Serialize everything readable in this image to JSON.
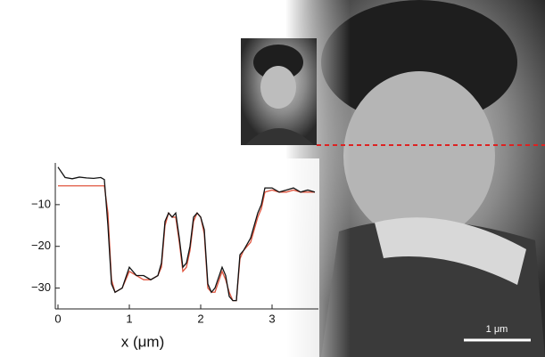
{
  "chart_data": {
    "type": "line",
    "xlabel": "x (μm)",
    "scale_bar_label": "1 μm",
    "x": [
      0,
      0.1,
      0.2,
      0.3,
      0.4,
      0.5,
      0.6,
      0.65,
      0.7,
      0.75,
      0.8,
      0.9,
      1.0,
      1.1,
      1.2,
      1.3,
      1.4,
      1.45,
      1.5,
      1.55,
      1.6,
      1.65,
      1.7,
      1.75,
      1.8,
      1.85,
      1.9,
      1.95,
      2.0,
      2.05,
      2.1,
      2.15,
      2.2,
      2.3,
      2.35,
      2.4,
      2.45,
      2.5,
      2.55,
      2.6,
      2.7,
      2.8,
      2.85,
      2.9,
      3.0,
      3.1,
      3.2,
      3.3,
      3.4,
      3.5,
      3.6
    ],
    "series": [
      {
        "color": "#e0553f",
        "values": [
          -5.5,
          -5.5,
          -5.5,
          -5.5,
          -5.5,
          -5.5,
          -5.5,
          -5.5,
          -12,
          -28,
          -31,
          -30,
          -26,
          -27,
          -28,
          -28,
          -27,
          -25,
          -15,
          -12,
          -13,
          -13,
          -19,
          -26,
          -25,
          -21,
          -14,
          -12,
          -13,
          -17,
          -30,
          -31,
          -31,
          -26,
          -28,
          -31,
          -33,
          -33,
          -23,
          -21,
          -19,
          -13,
          -11,
          -7,
          -6.5,
          -7,
          -7,
          -6.5,
          -7,
          -7,
          -7
        ]
      },
      {
        "color": "#111111",
        "values": [
          -1,
          -3.5,
          -3.8,
          -3.4,
          -3.6,
          -3.7,
          -3.5,
          -4,
          -15,
          -29,
          -31,
          -30,
          -25,
          -27,
          -27,
          -28,
          -27,
          -24,
          -14,
          -12,
          -13,
          -12,
          -18,
          -25,
          -24,
          -20,
          -13,
          -12,
          -13,
          -16,
          -29,
          -31,
          -30,
          -25,
          -27,
          -32,
          -33,
          -33,
          -22,
          -21,
          -18,
          -12,
          -10,
          -6,
          -6,
          -7,
          -6.5,
          -6,
          -7,
          -6.5,
          -7
        ]
      }
    ],
    "xlim": [
      0,
      3.65
    ],
    "ylim": [
      -35,
      0
    ],
    "xticks": [
      0,
      1,
      2,
      3
    ],
    "yticks": [
      {
        "value": -10,
        "label": "−10"
      },
      {
        "value": -20,
        "label": "−20"
      },
      {
        "value": -30,
        "label": "−30"
      }
    ]
  }
}
